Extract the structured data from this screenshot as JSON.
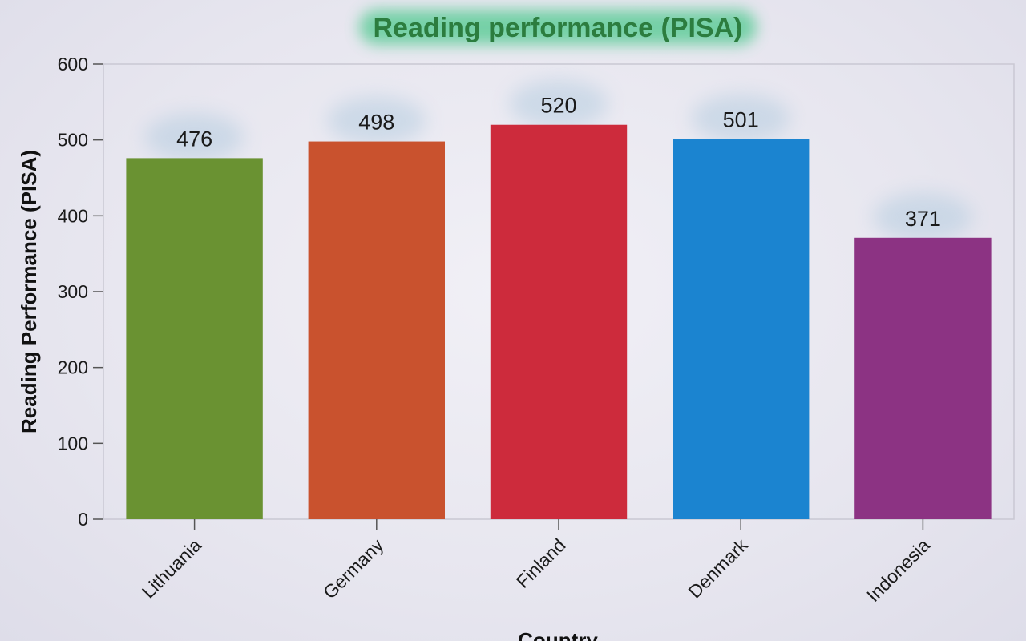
{
  "chart_data": {
    "type": "bar",
    "title": "Reading performance (PISA)",
    "xlabel": "Country",
    "ylabel": "Reading Performance (PISA)",
    "categories": [
      "Lithuania",
      "Germany",
      "Finland",
      "Denmark",
      "Indonesia"
    ],
    "values": [
      476,
      498,
      520,
      501,
      371
    ],
    "value_labels": [
      "476",
      "498",
      "520",
      "501",
      "371"
    ],
    "colors": [
      "#6a9232",
      "#c9522e",
      "#cd2b3c",
      "#1b84d0",
      "#8c3383"
    ],
    "ylim": [
      0,
      600
    ],
    "yticks": [
      0,
      100,
      200,
      300,
      400,
      500,
      600
    ],
    "ytick_labels": [
      "0",
      "100",
      "200",
      "300",
      "400",
      "500",
      "600"
    ],
    "grid": false,
    "legend": "none"
  }
}
